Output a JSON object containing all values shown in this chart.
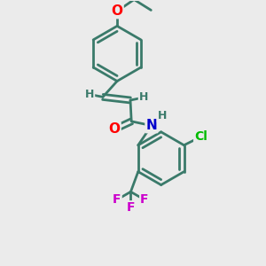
{
  "bg_color": "#ebebeb",
  "bond_color": "#3a7a6a",
  "bond_width": 2.0,
  "atom_colors": {
    "O": "#ff0000",
    "N": "#0000cc",
    "Cl": "#00bb00",
    "F": "#cc00cc",
    "H": "#3a7a6a"
  },
  "font_size": 10,
  "fig_size": [
    3.0,
    3.0
  ],
  "dpi": 100
}
